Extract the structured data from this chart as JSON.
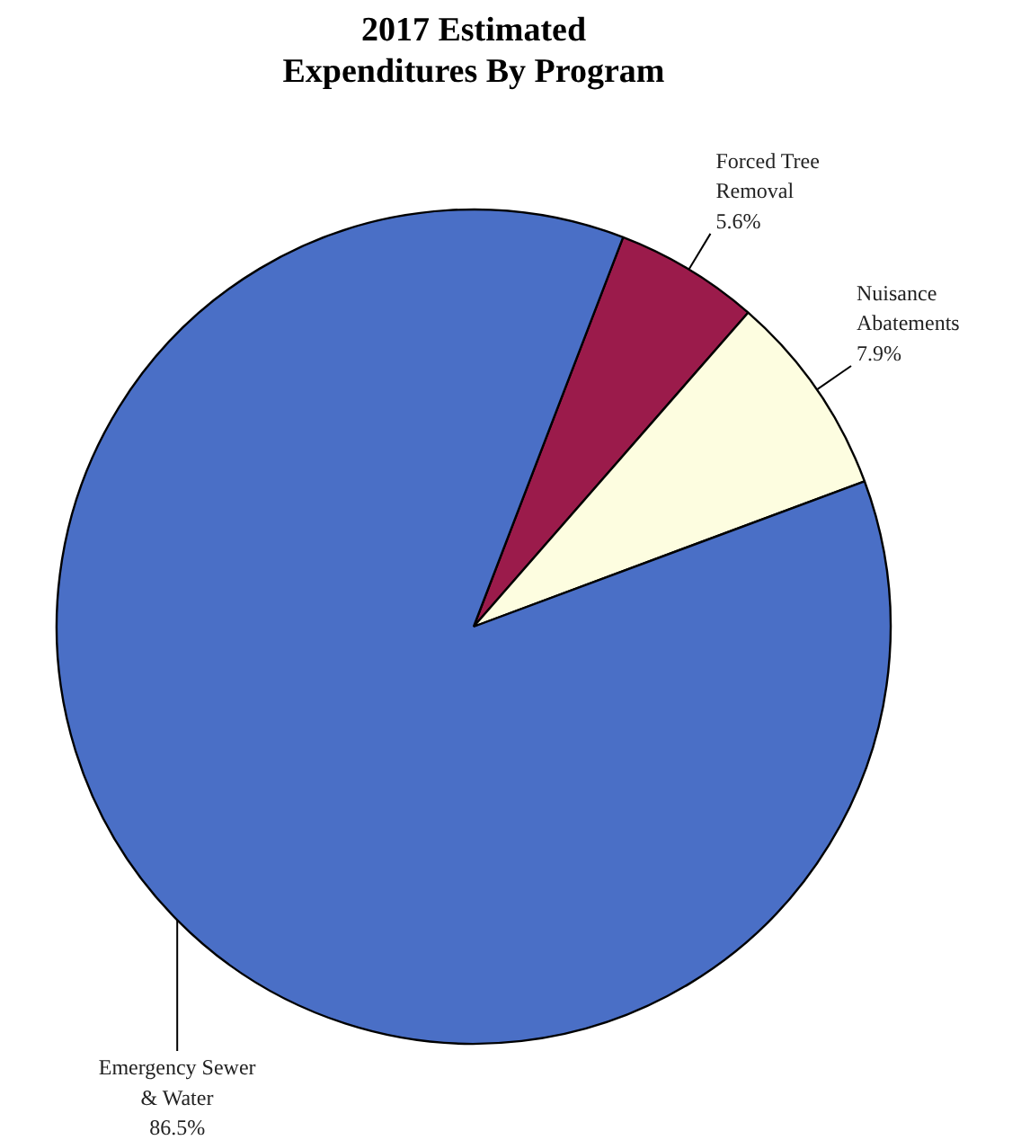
{
  "chart_data": {
    "type": "pie",
    "title": "2017 Estimated Expenditures By Program",
    "categories": [
      "Forced Tree Removal",
      "Nuisance Abatements",
      "Emergency Sewer & Water"
    ],
    "values": [
      5.6,
      7.9,
      86.5
    ],
    "colors": [
      "#9b1b4b",
      "#fdfde0",
      "#4a6fc6"
    ],
    "value_labels": [
      "5.6%",
      "7.9%",
      "86.5%"
    ]
  }
}
